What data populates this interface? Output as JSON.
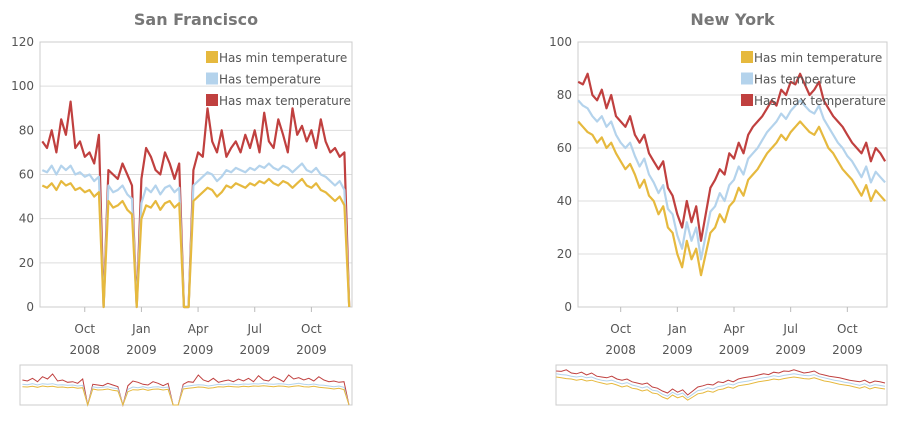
{
  "chart_data": [
    {
      "type": "line",
      "title": "San Francisco",
      "legend": "top-right",
      "grid": true,
      "x": [
        6.75,
        7,
        7.25,
        7.5,
        7.75,
        8,
        8.25,
        8.5,
        8.75,
        9,
        9.25,
        9.5,
        9.75,
        10,
        10.25,
        10.5,
        10.75,
        11,
        11.25,
        11.5,
        11.75,
        12,
        12.25,
        12.5,
        12.75,
        13,
        13.25,
        13.5,
        13.75,
        14,
        14.25,
        14.5,
        14.75,
        15,
        15.25,
        15.5,
        15.75,
        16,
        16.25,
        16.5,
        16.75,
        17,
        17.25,
        17.5,
        17.75,
        18,
        18.25,
        18.5,
        18.75,
        19,
        19.25,
        19.5,
        19.75,
        20,
        20.25,
        20.5,
        20.75,
        21,
        21.25,
        21.5,
        21.75,
        22,
        22.25,
        22.5,
        22.75,
        23
      ],
      "xlim": [
        6.63,
        23.15
      ],
      "xticks": [
        {
          "value": 9,
          "label": "Oct 2008"
        },
        {
          "value": 12,
          "label": "Jan 2009"
        },
        {
          "value": 15,
          "label": "Apr 2009"
        },
        {
          "value": 18,
          "label": "Jul 2009"
        },
        {
          "value": 21,
          "label": "Oct 2009"
        }
      ],
      "ylim": [
        0,
        120
      ],
      "yticks": [
        0,
        20,
        40,
        60,
        80,
        100,
        120
      ],
      "series": [
        {
          "name": "Has min temperature",
          "color": "#e6b93e",
          "values": [
            55,
            54,
            56,
            53,
            57,
            55,
            56,
            53,
            54,
            52,
            53,
            50,
            52,
            0,
            48,
            45,
            46,
            48,
            44,
            42,
            0,
            40,
            46,
            45,
            48,
            44,
            47,
            48,
            45,
            47,
            0,
            0,
            48,
            50,
            52,
            54,
            53,
            50,
            52,
            55,
            54,
            56,
            55,
            54,
            56,
            55,
            57,
            56,
            58,
            56,
            55,
            57,
            56,
            54,
            56,
            58,
            55,
            54,
            56,
            53,
            52,
            50,
            48,
            50,
            46,
            0
          ]
        },
        {
          "name": "Has temperature",
          "color": "#b4d3ec",
          "values": [
            62,
            61,
            64,
            60,
            64,
            62,
            64,
            60,
            61,
            59,
            60,
            57,
            59,
            0,
            55,
            52,
            53,
            55,
            51,
            49,
            0,
            47,
            54,
            52,
            55,
            51,
            54,
            55,
            52,
            54,
            0,
            0,
            55,
            57,
            59,
            61,
            60,
            57,
            59,
            62,
            61,
            63,
            62,
            61,
            63,
            62,
            64,
            63,
            65,
            63,
            62,
            64,
            63,
            61,
            63,
            65,
            62,
            61,
            63,
            60,
            59,
            57,
            55,
            57,
            53,
            0
          ]
        },
        {
          "name": "Has max temperature",
          "color": "#c0403f",
          "values": [
            75,
            72,
            80,
            70,
            85,
            78,
            93,
            72,
            75,
            68,
            70,
            65,
            78,
            0,
            62,
            60,
            58,
            65,
            60,
            55,
            0,
            58,
            72,
            68,
            62,
            60,
            70,
            65,
            58,
            65,
            0,
            0,
            62,
            70,
            68,
            90,
            75,
            70,
            80,
            68,
            72,
            75,
            70,
            78,
            72,
            80,
            70,
            88,
            75,
            72,
            85,
            78,
            70,
            90,
            78,
            82,
            75,
            80,
            72,
            85,
            75,
            70,
            72,
            68,
            70,
            0
          ]
        }
      ]
    },
    {
      "type": "line",
      "title": "New York",
      "legend": "top-right",
      "grid": true,
      "x": [
        6.75,
        7,
        7.25,
        7.5,
        7.75,
        8,
        8.25,
        8.5,
        8.75,
        9,
        9.25,
        9.5,
        9.75,
        10,
        10.25,
        10.5,
        10.75,
        11,
        11.25,
        11.5,
        11.75,
        12,
        12.25,
        12.5,
        12.75,
        13,
        13.25,
        13.5,
        13.75,
        14,
        14.25,
        14.5,
        14.75,
        15,
        15.25,
        15.5,
        15.75,
        16,
        16.25,
        16.5,
        16.75,
        17,
        17.25,
        17.5,
        17.75,
        18,
        18.25,
        18.5,
        18.75,
        19,
        19.25,
        19.5,
        19.75,
        20,
        20.25,
        20.5,
        20.75,
        21,
        21.25,
        21.5,
        21.75,
        22,
        22.25,
        22.5,
        22.75,
        23
      ],
      "xlim": [
        6.74,
        23.1
      ],
      "xticks": [
        {
          "value": 9,
          "label": "Oct 2008"
        },
        {
          "value": 12,
          "label": "Jan 2009"
        },
        {
          "value": 15,
          "label": "Apr 2009"
        },
        {
          "value": 18,
          "label": "Jul 2009"
        },
        {
          "value": 21,
          "label": "Oct 2009"
        }
      ],
      "ylim": [
        0,
        100
      ],
      "yticks": [
        0,
        20,
        40,
        60,
        80,
        100
      ],
      "series": [
        {
          "name": "Has min temperature",
          "color": "#e6b93e",
          "values": [
            70,
            68,
            66,
            65,
            62,
            64,
            60,
            62,
            58,
            55,
            52,
            54,
            50,
            45,
            48,
            42,
            40,
            35,
            38,
            30,
            28,
            20,
            15,
            25,
            18,
            22,
            12,
            20,
            28,
            30,
            35,
            32,
            38,
            40,
            45,
            42,
            48,
            50,
            52,
            55,
            58,
            60,
            62,
            65,
            63,
            66,
            68,
            70,
            68,
            66,
            65,
            68,
            64,
            60,
            58,
            55,
            52,
            50,
            48,
            45,
            42,
            46,
            40,
            44,
            42,
            40
          ]
        },
        {
          "name": "Has temperature",
          "color": "#b4d3ec",
          "values": [
            78,
            76,
            75,
            72,
            70,
            72,
            68,
            70,
            65,
            62,
            60,
            62,
            57,
            53,
            56,
            50,
            47,
            43,
            46,
            37,
            35,
            27,
            22,
            32,
            25,
            30,
            18,
            27,
            36,
            38,
            43,
            40,
            46,
            48,
            53,
            50,
            56,
            58,
            60,
            63,
            66,
            68,
            70,
            73,
            71,
            74,
            76,
            78,
            76,
            74,
            73,
            76,
            71,
            68,
            65,
            62,
            60,
            57,
            55,
            52,
            49,
            53,
            47,
            51,
            49,
            47
          ]
        },
        {
          "name": "Has max temperature",
          "color": "#c0403f",
          "values": [
            85,
            84,
            88,
            80,
            78,
            82,
            75,
            80,
            72,
            70,
            68,
            72,
            65,
            62,
            65,
            58,
            55,
            52,
            55,
            45,
            42,
            35,
            30,
            40,
            32,
            38,
            25,
            35,
            45,
            48,
            52,
            50,
            58,
            56,
            62,
            58,
            65,
            68,
            70,
            72,
            75,
            78,
            76,
            82,
            80,
            85,
            84,
            88,
            84,
            80,
            82,
            85,
            78,
            75,
            72,
            70,
            68,
            65,
            62,
            60,
            58,
            62,
            55,
            60,
            58,
            55
          ]
        }
      ]
    }
  ]
}
